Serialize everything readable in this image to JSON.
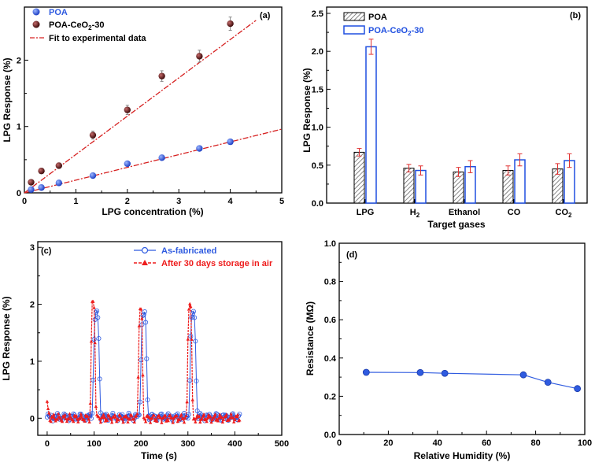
{
  "colors": {
    "poa": "#2f5be0",
    "ceo2": "#6b1818",
    "fit": "#d62020",
    "after": "#ee1c1c",
    "err": "#e03030",
    "bar_blue": "#1f4fe0"
  },
  "chart_data": [
    {
      "type": "scatter",
      "panel_label": "(a)",
      "xlabel": "LPG concentration (%)",
      "ylabel": "LPG Response (%)",
      "xlim": [
        0,
        5
      ],
      "ylim": [
        0,
        2.8
      ],
      "xticks": [
        "0",
        "1",
        "2",
        "3",
        "4",
        "5"
      ],
      "yticks": [
        "0",
        "1",
        "2"
      ],
      "legend": {
        "poa": "POA",
        "ceo2_main": "POA-CeO",
        "ceo2_sub": "2",
        "ceo2_tail": "-30",
        "fit": "Fit to experimental data"
      },
      "series": [
        {
          "name": "POA",
          "x": [
            0.13,
            0.33,
            0.67,
            1.33,
            2,
            2.67,
            3.4,
            4
          ],
          "y": [
            0.05,
            0.08,
            0.15,
            0.26,
            0.44,
            0.53,
            0.67,
            0.77
          ]
        },
        {
          "name": "POA-CeO2-30",
          "x": [
            0.13,
            0.33,
            0.67,
            1.33,
            2,
            2.67,
            3.4,
            4
          ],
          "y": [
            0.16,
            0.33,
            0.41,
            0.87,
            1.25,
            1.76,
            2.06,
            2.55
          ]
        }
      ],
      "fits": [
        {
          "x": [
            0,
            5
          ],
          "y": [
            0,
            0.96
          ]
        },
        {
          "x": [
            0,
            4.5
          ],
          "y": [
            0,
            2.6
          ]
        }
      ]
    },
    {
      "type": "bar",
      "panel_label": "(b)",
      "xlabel": "Target gases",
      "ylabel": "LPG Response (%)",
      "ylim": [
        0,
        2.5
      ],
      "yticks": [
        "0.0",
        "0.5",
        "1.0",
        "1.5",
        "2.0",
        "2.5"
      ],
      "categories": [
        "LPG",
        "H",
        "Ethanol",
        "CO",
        "CO"
      ],
      "subscripts": [
        "",
        "2",
        "",
        "",
        "2"
      ],
      "series": [
        {
          "name": "POA",
          "values": [
            0.67,
            0.46,
            0.41,
            0.43,
            0.45
          ],
          "errors": [
            0.05,
            0.05,
            0.06,
            0.06,
            0.07
          ]
        },
        {
          "name": "POA-CeO2-30",
          "values": [
            2.06,
            0.43,
            0.48,
            0.57,
            0.56
          ],
          "errors": [
            0.1,
            0.06,
            0.08,
            0.08,
            0.09
          ]
        }
      ],
      "legend": {
        "poa": "POA",
        "ceo2_main": "POA-CeO",
        "ceo2_sub": "2",
        "ceo2_tail": "-30"
      }
    },
    {
      "type": "line",
      "panel_label": "(c)",
      "xlabel": "Time (s)",
      "ylabel": "LPG Response (%)",
      "xlim": [
        -20,
        500
      ],
      "ylim": [
        -0.3,
        3.1
      ],
      "xticks": [
        "0",
        "100",
        "200",
        "300",
        "400",
        "500"
      ],
      "yticks": [
        "0",
        "1",
        "2",
        "3"
      ],
      "legend": {
        "as_fab": "As-fabricated",
        "after": "After 30 days storage in air"
      },
      "peaks": [
        {
          "series": "As-fabricated",
          "centers": [
            105,
            206,
            311
          ],
          "heights": [
            1.8,
            1.8,
            1.8
          ]
        },
        {
          "series": "After 30 days storage in air",
          "centers": [
            98,
            199,
            304
          ],
          "heights": [
            2.03,
            1.93,
            2.03
          ]
        }
      ],
      "baseline_range": [
        0,
        410
      ]
    },
    {
      "type": "line",
      "panel_label": "(d)",
      "xlabel": "Relative Humidity (%)",
      "ylabel": "Resistance (MΩ)",
      "xlim": [
        0,
        100
      ],
      "ylim": [
        0,
        1.0
      ],
      "xticks": [
        "0",
        "20",
        "40",
        "60",
        "80",
        "100"
      ],
      "yticks": [
        "0.0",
        "0.2",
        "0.4",
        "0.6",
        "0.8",
        "1.0"
      ],
      "x": [
        11,
        33,
        43,
        75,
        85,
        97
      ],
      "y": [
        0.325,
        0.324,
        0.32,
        0.312,
        0.273,
        0.24
      ]
    }
  ]
}
